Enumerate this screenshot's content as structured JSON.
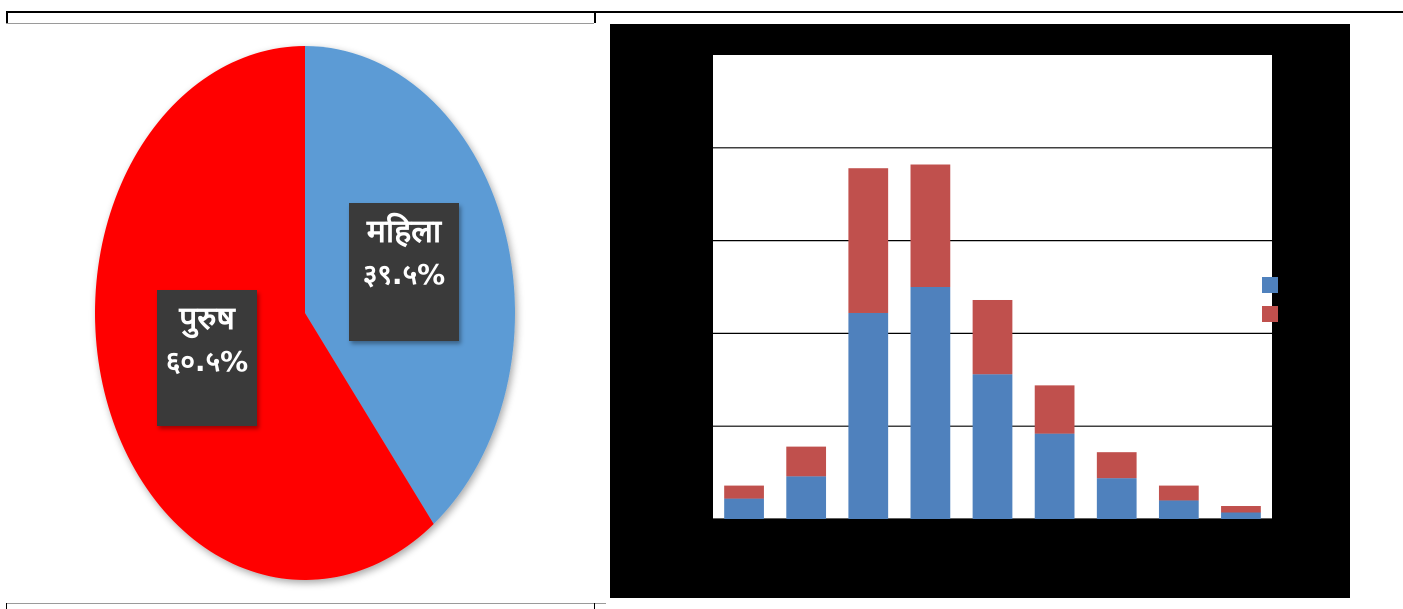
{
  "chart_data": [
    {
      "type": "pie",
      "slices": [
        {
          "label": "महिला",
          "value_label": "३९.५%",
          "value": 39.5,
          "color": "#5b9bd5"
        },
        {
          "label": "पुरुष",
          "value_label": "६०.५%",
          "value": 60.5,
          "color": "#ff0000"
        }
      ]
    },
    {
      "type": "bar",
      "stacked": true,
      "categories": [
        "",
        "",
        "",
        "",
        "",
        "",
        "",
        "",
        ""
      ],
      "series": [
        {
          "values": [
            1.1,
            2.3,
            11.1,
            12.5,
            7.8,
            4.6,
            2.2,
            1.0,
            0.35
          ],
          "color": "#4f81bd"
        },
        {
          "values": [
            0.7,
            1.6,
            7.8,
            6.6,
            4.0,
            2.6,
            1.4,
            0.8,
            0.35
          ],
          "color": "#c0504d"
        }
      ],
      "ylim": [
        0,
        25
      ],
      "grid": true,
      "legend": "right",
      "background": "#000000"
    }
  ]
}
